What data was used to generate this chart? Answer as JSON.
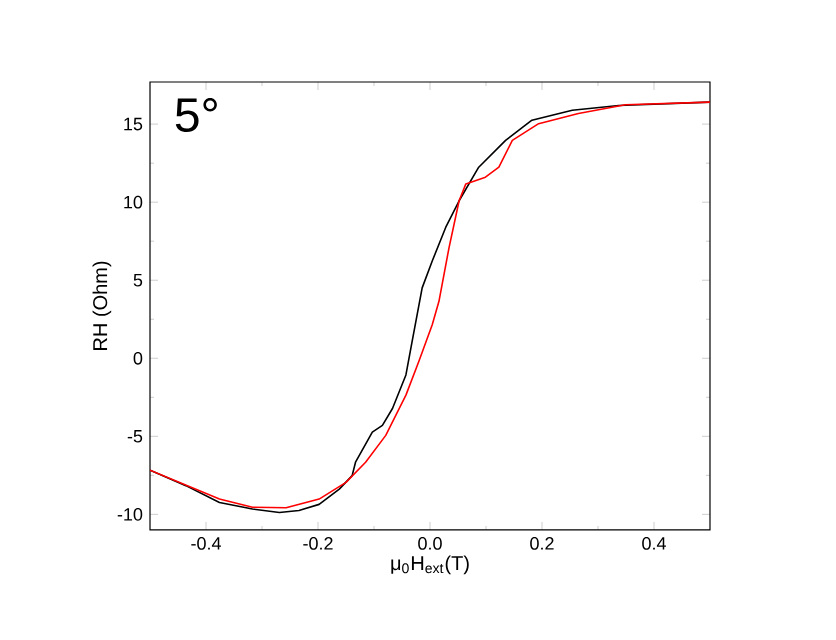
{
  "chart_data": {
    "type": "line",
    "xlabel": "μ$_{0}$H$_{ext}$(T)",
    "ylabel": "RH (Ohm)",
    "annotations": [
      "5°"
    ],
    "xlim": [
      -0.5,
      0.5
    ],
    "ylim": [
      -11,
      17.7
    ],
    "xticks": [
      {
        "value": -0.4,
        "label": "-0.4"
      },
      {
        "value": -0.2,
        "label": "-0.2"
      },
      {
        "value": 0,
        "label": "0.0"
      },
      {
        "value": 0.2,
        "label": "0.2"
      },
      {
        "value": 0.4,
        "label": "0.4"
      }
    ],
    "yticks": [
      {
        "value": -10,
        "label": "-10"
      },
      {
        "value": -5,
        "label": "-5"
      },
      0,
      5,
      10,
      15
    ],
    "series": [
      {
        "color": "#000000",
        "x": [
          -0.5,
          -0.436,
          -0.376,
          -0.317,
          -0.269,
          -0.234,
          -0.198,
          -0.162,
          -0.139,
          -0.133,
          -0.103,
          -0.085,
          -0.067,
          -0.043,
          -0.032,
          -0.014,
          0.004,
          0.028,
          0.052,
          0.087,
          0.135,
          0.182,
          0.254,
          0.337,
          0.5
        ],
        "values": [
          -7.17,
          -8.16,
          -9.24,
          -9.66,
          -9.88,
          -9.75,
          -9.36,
          -8.38,
          -7.52,
          -6.66,
          -4.73,
          -4.3,
          -3.22,
          -1.07,
          1.07,
          4.51,
          6.23,
          8.38,
          10.09,
          12.24,
          13.96,
          15.25,
          15.89,
          16.19,
          16.41
        ]
      },
      {
        "color": "#ff0000",
        "x": [
          -0.5,
          -0.376,
          -0.317,
          -0.257,
          -0.198,
          -0.15,
          -0.115,
          -0.079,
          -0.043,
          -0.02,
          0.004,
          0.016,
          0.034,
          0.052,
          0.064,
          0.099,
          0.123,
          0.147,
          0.194,
          0.265,
          0.349,
          0.5
        ],
        "values": [
          -7.17,
          -9.02,
          -9.54,
          -9.58,
          -9.02,
          -7.95,
          -6.66,
          -4.94,
          -2.36,
          -0.21,
          2.15,
          3.65,
          7.09,
          10.09,
          11.17,
          11.6,
          12.24,
          13.96,
          15.03,
          15.68,
          16.24,
          16.41
        ]
      }
    ]
  }
}
